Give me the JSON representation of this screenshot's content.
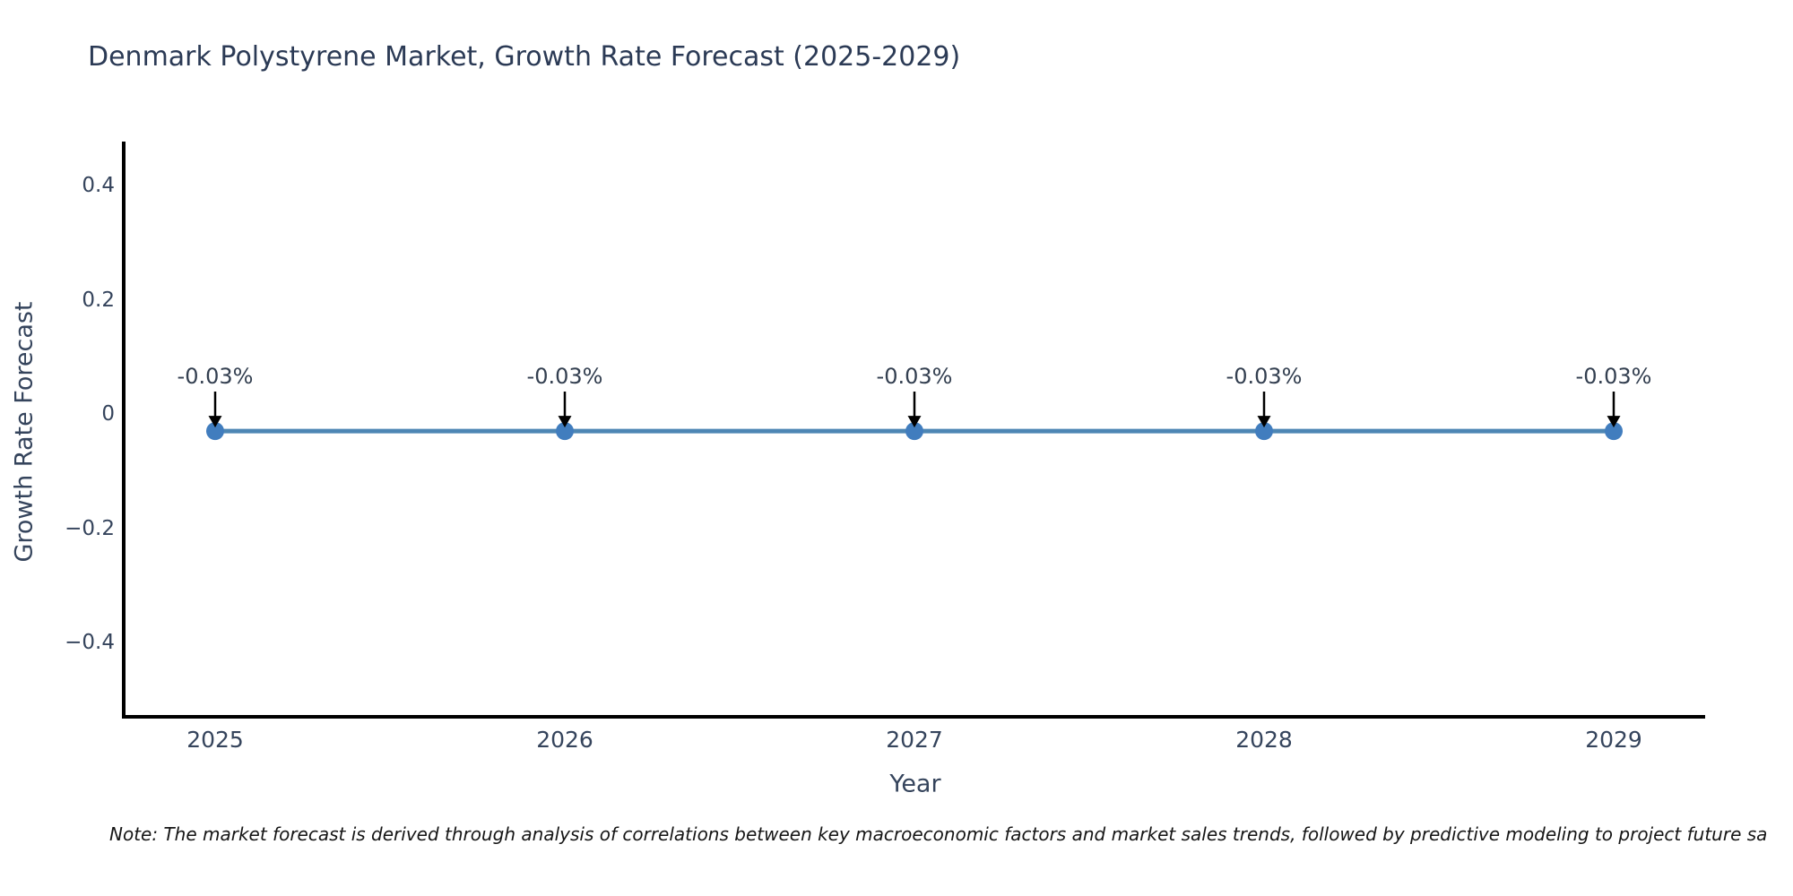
{
  "note": "Note: The market forecast is derived through analysis of correlations between key macroeconomic factors and market sales trends, followed by predictive modeling to project future sa",
  "chart_data": {
    "type": "line",
    "title": "Denmark Polystyrene Market, Growth Rate Forecast (2025-2029)",
    "xlabel": "Year",
    "ylabel": "Growth Rate Forecast",
    "x": [
      "2025",
      "2026",
      "2027",
      "2028",
      "2029"
    ],
    "series": [
      {
        "name": "Growth Rate Forecast",
        "values": [
          -0.03,
          -0.03,
          -0.03,
          -0.03,
          -0.03
        ]
      }
    ],
    "point_labels": [
      "-0.03%",
      "-0.03%",
      "-0.03%",
      "-0.03%",
      "-0.03%"
    ],
    "ytick_labels": [
      "0.4",
      "0.2",
      "0",
      "−0.2",
      "−0.4"
    ],
    "ytick_values": [
      0.4,
      0.2,
      0,
      -0.2,
      -0.4
    ],
    "ylim": [
      -0.53,
      0.48
    ],
    "grid": false,
    "legend": false,
    "annotation_arrows": true,
    "colors": {
      "line": "#4d86b4",
      "marker": "#417dbe",
      "axis": "#000000",
      "arrow": "#000000",
      "title_text": "#2b3a55",
      "tick_text": "#35445c",
      "annotation_text": "#333f50",
      "note_text": "#151515"
    }
  }
}
